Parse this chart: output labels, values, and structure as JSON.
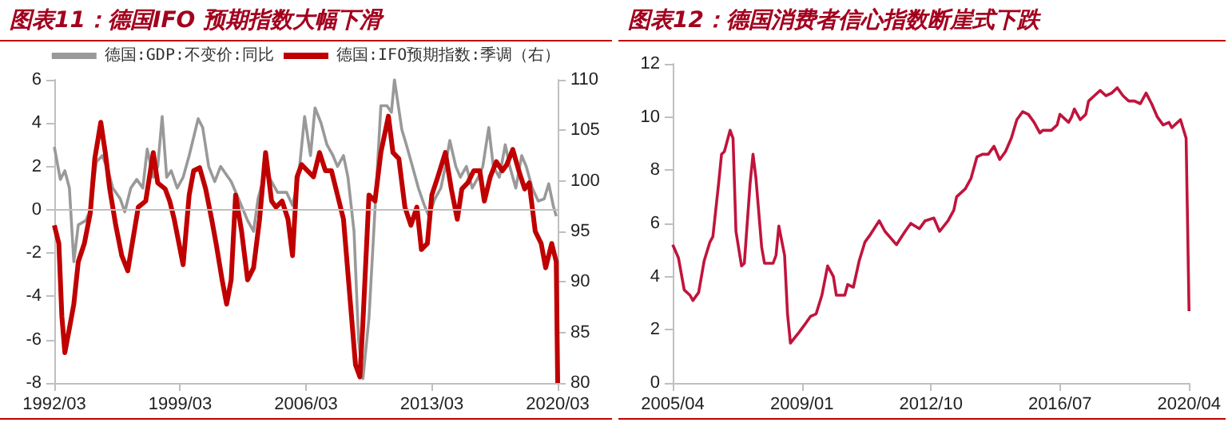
{
  "chart_data": [
    {
      "type": "line",
      "title": "图表11：德国IFO 预期指数大幅下滑",
      "legend": "top",
      "marker": "none",
      "xlim": [
        "1992-03",
        "2020-03"
      ],
      "xticks": [
        {
          "value": "1992-03",
          "label": "1992/03"
        },
        {
          "value": "1999-03",
          "label": "1999/03"
        },
        {
          "value": "2006-03",
          "label": "2006/03"
        },
        {
          "value": "2013-03",
          "label": "2013/03"
        },
        {
          "value": "2020-03",
          "label": "2020/03"
        }
      ],
      "ylim": [
        -8,
        6
      ],
      "yticks": [
        -8,
        -6,
        -4,
        -2,
        0,
        2,
        4,
        6
      ],
      "y2lim": [
        80,
        110
      ],
      "y2ticks": [
        80,
        85,
        90,
        95,
        100,
        105,
        110
      ],
      "ref_lines": [
        {
          "axis": "y",
          "value": 0,
          "color": "#bfbfbf"
        }
      ],
      "series": [
        {
          "name": "德国:GDP:不变价:同比",
          "color": "#999999",
          "x": [
            "1992-03",
            "1992-07",
            "1992-10",
            "1993-01",
            "1993-04",
            "1993-07",
            "1993-12",
            "1994-03",
            "1994-07",
            "1994-11",
            "1995-03",
            "1995-06",
            "1995-11",
            "1996-02",
            "1996-06",
            "1996-10",
            "1997-02",
            "1997-05",
            "1997-09",
            "1997-12",
            "1998-03",
            "1998-06",
            "1998-09",
            "1999-01",
            "1999-05",
            "1999-09",
            "2000-03",
            "2000-06",
            "2000-10",
            "2001-02",
            "2001-06",
            "2001-10",
            "2002-01",
            "2002-06",
            "2002-12",
            "2003-04",
            "2003-07",
            "2003-12",
            "2004-04",
            "2004-08",
            "2005-02",
            "2005-06",
            "2005-10",
            "2006-02",
            "2006-06",
            "2006-09",
            "2007-01",
            "2007-05",
            "2007-09",
            "2007-12",
            "2008-04",
            "2008-07",
            "2008-11",
            "2009-02",
            "2009-05",
            "2009-09",
            "2010-01",
            "2010-05",
            "2010-09",
            "2010-12",
            "2011-02",
            "2011-07",
            "2011-10",
            "2012-02",
            "2012-06",
            "2012-10",
            "2013-01",
            "2013-05",
            "2013-09",
            "2013-12",
            "2014-03",
            "2014-07",
            "2014-10",
            "2015-02",
            "2015-06",
            "2015-10",
            "2016-01",
            "2016-05",
            "2016-08",
            "2016-12",
            "2017-04",
            "2017-07",
            "2017-11",
            "2018-03",
            "2018-06",
            "2018-10",
            "2019-02",
            "2019-06",
            "2019-09",
            "2019-12",
            "2020-02"
          ],
          "values": [
            2.9,
            1.4,
            1.8,
            1.0,
            -2.4,
            -0.7,
            -0.5,
            0.0,
            2.2,
            2.5,
            1.8,
            1.0,
            0.5,
            -0.1,
            1.0,
            1.4,
            1.0,
            2.8,
            1.5,
            2.0,
            4.3,
            1.5,
            1.8,
            1.0,
            1.5,
            2.5,
            4.2,
            3.8,
            2.0,
            1.3,
            2.0,
            1.6,
            1.3,
            0.5,
            -0.5,
            -1.0,
            0.5,
            1.8,
            1.3,
            0.8,
            0.8,
            0.2,
            1.5,
            4.3,
            2.5,
            4.7,
            4.0,
            3.0,
            2.5,
            2.0,
            2.5,
            1.5,
            -1.0,
            -6.0,
            -7.8,
            -5.0,
            0.0,
            4.8,
            4.8,
            4.5,
            6.0,
            3.7,
            3.0,
            2.0,
            1.0,
            0.2,
            -0.3,
            0.5,
            1.0,
            2.0,
            3.2,
            2.0,
            1.5,
            2.0,
            1.0,
            1.5,
            2.0,
            3.8,
            2.0,
            1.5,
            3.0,
            2.0,
            1.0,
            2.5,
            2.0,
            1.0,
            0.4,
            0.5,
            1.2,
            0.2,
            -0.3
          ]
        },
        {
          "name": "德国:IFO预期指数:季调（右）",
          "color": "#c00000",
          "axis": "y2",
          "x": [
            "1992-03",
            "1992-06",
            "1992-08",
            "1992-10",
            "1993-01",
            "1993-04",
            "1993-07",
            "1993-11",
            "1994-03",
            "1994-06",
            "1994-10",
            "1995-01",
            "1995-04",
            "1995-08",
            "1995-12",
            "1996-04",
            "1996-07",
            "1996-11",
            "1997-04",
            "1997-09",
            "1997-12",
            "1998-05",
            "1998-08",
            "1998-11",
            "1999-05",
            "1999-09",
            "1999-12",
            "2000-04",
            "2000-08",
            "2000-12",
            "2001-03",
            "2001-07",
            "2001-10",
            "2002-01",
            "2002-04",
            "2002-08",
            "2002-12",
            "2003-04",
            "2003-08",
            "2003-12",
            "2004-04",
            "2004-07",
            "2004-11",
            "2005-03",
            "2005-06",
            "2005-09",
            "2005-12",
            "2006-04",
            "2006-08",
            "2006-12",
            "2007-04",
            "2007-08",
            "2007-12",
            "2008-04",
            "2008-08",
            "2008-12",
            "2009-03",
            "2009-05",
            "2009-09",
            "2010-01",
            "2010-05",
            "2010-10",
            "2011-01",
            "2011-05",
            "2011-09",
            "2012-01",
            "2012-05",
            "2012-08",
            "2012-12",
            "2013-03",
            "2013-07",
            "2013-12",
            "2014-04",
            "2014-08",
            "2014-11",
            "2015-03",
            "2015-07",
            "2015-11",
            "2016-02",
            "2016-06",
            "2016-10",
            "2017-02",
            "2017-05",
            "2017-09",
            "2018-01",
            "2018-05",
            "2018-08",
            "2018-12",
            "2019-04",
            "2019-07",
            "2019-11",
            "2020-01",
            "2020-02",
            "2020-03"
          ],
          "values": [
            95.6,
            93.8,
            86.6,
            83.0,
            85.4,
            87.8,
            92.0,
            93.8,
            96.8,
            102.2,
            105.8,
            102.8,
            99.2,
            95.6,
            92.6,
            91.1,
            93.8,
            97.4,
            98.0,
            102.8,
            99.8,
            99.2,
            98.0,
            96.2,
            91.7,
            98.6,
            101.0,
            101.3,
            99.2,
            96.2,
            93.8,
            90.2,
            87.8,
            90.2,
            98.6,
            95.0,
            90.2,
            91.4,
            96.2,
            102.8,
            98.0,
            97.4,
            98.0,
            96.2,
            92.6,
            100.4,
            101.6,
            101.0,
            100.4,
            102.8,
            101.0,
            101.0,
            98.6,
            96.2,
            89.0,
            81.8,
            80.6,
            86.0,
            98.6,
            98.0,
            102.8,
            106.4,
            102.8,
            102.2,
            97.4,
            95.6,
            97.4,
            93.2,
            93.8,
            98.6,
            100.4,
            102.8,
            99.2,
            96.2,
            99.2,
            99.8,
            101.0,
            101.0,
            98.0,
            100.4,
            101.9,
            101.0,
            101.6,
            103.1,
            101.0,
            99.2,
            99.8,
            95.0,
            93.8,
            91.4,
            93.8,
            92.6,
            92.0,
            80.0
          ]
        }
      ]
    },
    {
      "type": "line",
      "title": "图表12：德国消费者信心指数断崖式下跌",
      "marker": "none",
      "xlim": [
        "2005-04",
        "2020-04"
      ],
      "xticks": [
        {
          "value": "2005-04",
          "label": "2005/04"
        },
        {
          "value": "2009-01",
          "label": "2009/01"
        },
        {
          "value": "2012-10",
          "label": "2012/10"
        },
        {
          "value": "2016-07",
          "label": "2016/07"
        },
        {
          "value": "2020-04",
          "label": "2020/04"
        }
      ],
      "ylim": [
        0,
        12
      ],
      "yticks": [
        0,
        2,
        4,
        6,
        8,
        10,
        12
      ],
      "series": [
        {
          "color": "#c0143c",
          "x": [
            "2005-04",
            "2005-06",
            "2005-08",
            "2005-10",
            "2005-11",
            "2006-01",
            "2006-03",
            "2006-05",
            "2006-06",
            "2006-08",
            "2006-09",
            "2006-10",
            "2006-12",
            "2007-01",
            "2007-02",
            "2007-04",
            "2007-05",
            "2007-07",
            "2007-08",
            "2007-09",
            "2007-11",
            "2007-12",
            "2008-03",
            "2008-04",
            "2008-05",
            "2008-07",
            "2008-08",
            "2008-09",
            "2008-12",
            "2009-02",
            "2009-04",
            "2009-06",
            "2009-08",
            "2009-10",
            "2009-12",
            "2010-01",
            "2010-04",
            "2010-05",
            "2010-07",
            "2010-09",
            "2010-11",
            "2011-01",
            "2011-04",
            "2011-06",
            "2011-10",
            "2012-01",
            "2012-03",
            "2012-06",
            "2012-08",
            "2012-11",
            "2013-01",
            "2013-04",
            "2013-06",
            "2013-07",
            "2013-10",
            "2013-12",
            "2014-02",
            "2014-04",
            "2014-06",
            "2014-08",
            "2014-10",
            "2014-12",
            "2015-02",
            "2015-04",
            "2015-06",
            "2015-08",
            "2015-10",
            "2015-12",
            "2016-01",
            "2016-04",
            "2016-06",
            "2016-07",
            "2016-10",
            "2016-11",
            "2016-12",
            "2017-02",
            "2017-04",
            "2017-05",
            "2017-07",
            "2017-09",
            "2017-11",
            "2018-01",
            "2018-03",
            "2018-05",
            "2018-07",
            "2018-09",
            "2018-11",
            "2019-01",
            "2019-03",
            "2019-05",
            "2019-07",
            "2019-09",
            "2019-10",
            "2019-12",
            "2020-01",
            "2020-03",
            "2020-04"
          ],
          "values": [
            5.2,
            4.7,
            3.5,
            3.3,
            3.1,
            3.4,
            4.6,
            5.3,
            5.5,
            7.5,
            8.6,
            8.7,
            9.5,
            9.2,
            5.7,
            4.4,
            4.5,
            7.5,
            8.6,
            7.7,
            5.1,
            4.5,
            4.5,
            4.8,
            5.9,
            4.8,
            2.6,
            1.5,
            1.9,
            2.2,
            2.5,
            2.6,
            3.3,
            4.4,
            4.0,
            3.3,
            3.3,
            3.7,
            3.6,
            4.6,
            5.3,
            5.6,
            6.1,
            5.7,
            5.2,
            5.7,
            6.0,
            5.8,
            6.1,
            6.2,
            5.7,
            6.1,
            6.5,
            7.0,
            7.3,
            7.7,
            8.5,
            8.6,
            8.6,
            8.9,
            8.4,
            8.7,
            9.2,
            9.9,
            10.2,
            10.1,
            9.8,
            9.4,
            9.5,
            9.5,
            9.7,
            10.1,
            9.8,
            10.0,
            10.3,
            9.9,
            10.1,
            10.6,
            10.8,
            11.0,
            10.8,
            10.9,
            11.1,
            10.8,
            10.6,
            10.6,
            10.5,
            10.9,
            10.5,
            10.0,
            9.7,
            9.8,
            9.6,
            9.8,
            9.9,
            9.2,
            2.7
          ]
        }
      ]
    }
  ]
}
